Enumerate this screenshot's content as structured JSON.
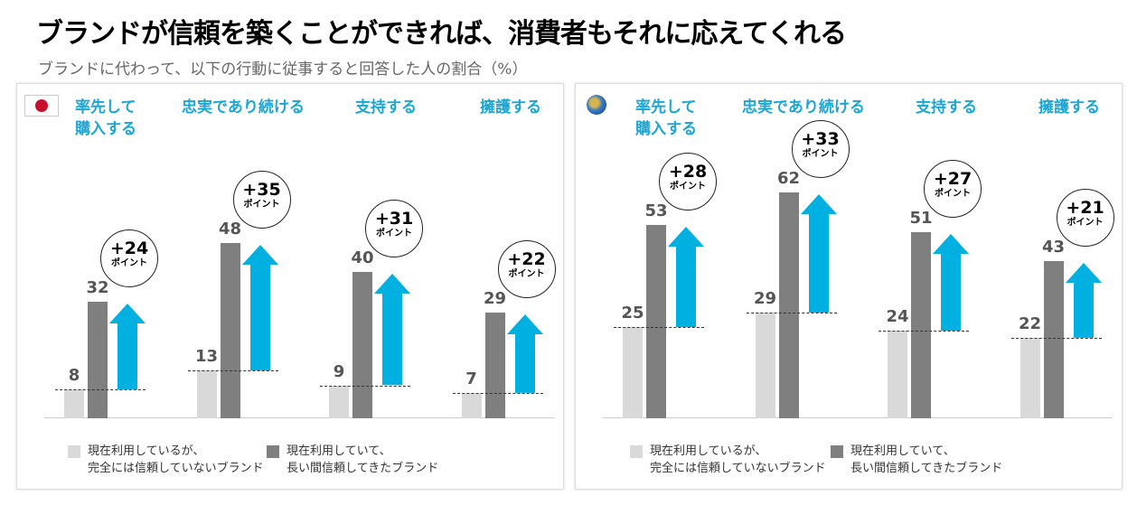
{
  "title": "ブランドが信頼を築くことができれば、消費者もそれに応えてくれる",
  "subtitle": "ブランドに代わって、以下の行動に従事すると回答した人の割合（%）",
  "colors": {
    "untrusted": "#d9d9d9",
    "trusted": "#7f7f7f",
    "arrow": "#00b0e0",
    "category": "#1ba6d3"
  },
  "chart_data": [
    {
      "type": "bar",
      "region_icon": "japan-flag",
      "categories": [
        "率先して\n購入する",
        "忠実であり続ける",
        "支持する",
        "擁護する"
      ],
      "series": [
        {
          "name": "現在利用しているが、\n完全には信頼していないブランド",
          "values": [
            8,
            13,
            9,
            7
          ]
        },
        {
          "name": "現在利用していて、\n長い間信頼してきたブランド",
          "values": [
            32,
            48,
            40,
            29
          ]
        }
      ],
      "differences": [
        "+24",
        "+35",
        "+31",
        "+22"
      ],
      "difference_unit": "ポイント",
      "legend": "bottom"
    },
    {
      "type": "bar",
      "region_icon": "globe",
      "categories": [
        "率先して\n購入する",
        "忠実であり続ける",
        "支持する",
        "擁護する"
      ],
      "series": [
        {
          "name": "現在利用しているが、\n完全には信頼していないブランド",
          "values": [
            25,
            29,
            24,
            22
          ]
        },
        {
          "name": "現在利用していて、\n長い間信頼してきたブランド",
          "values": [
            53,
            62,
            51,
            43
          ]
        }
      ],
      "differences": [
        "+28",
        "+33",
        "+27",
        "+21"
      ],
      "difference_unit": "ポイント",
      "legend": "bottom"
    }
  ]
}
